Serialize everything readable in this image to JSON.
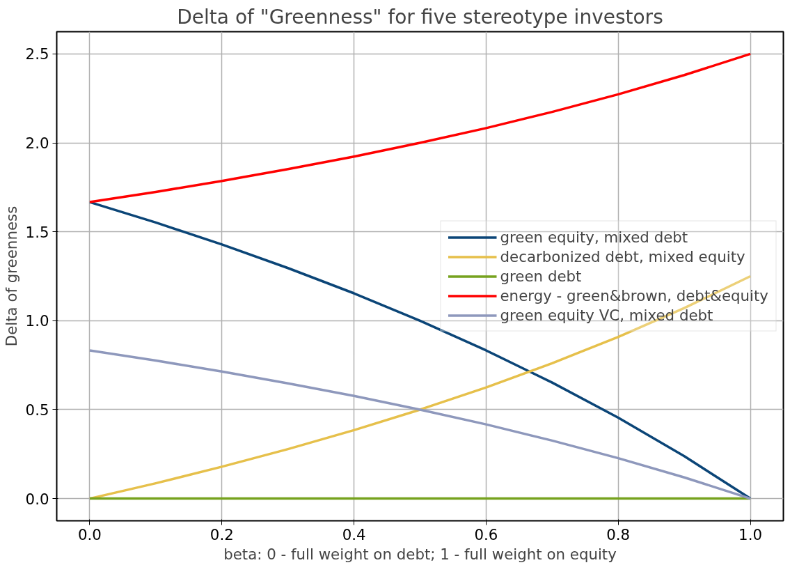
{
  "chart_data": {
    "type": "line",
    "title": "Delta of \"Greenness\" for five stereotype investors",
    "xlabel": "beta: 0 - full weight on debt; 1 - full weight on equity",
    "ylabel": "Delta of greenness",
    "x": [
      0,
      0.1,
      0.2,
      0.3,
      0.4,
      0.5,
      0.6,
      0.7,
      0.8,
      0.9,
      1.0
    ],
    "series": [
      {
        "name": "green equity, mixed debt",
        "color": "#0b4577",
        "values": [
          1.667,
          1.552,
          1.429,
          1.296,
          1.154,
          1.0,
          0.833,
          0.652,
          0.455,
          0.238,
          0
        ]
      },
      {
        "name": "decarbonized debt, mixed equity",
        "color": "#e6c04b",
        "values": [
          0,
          0.086,
          0.179,
          0.278,
          0.385,
          0.5,
          0.625,
          0.761,
          0.909,
          1.071,
          1.25
        ]
      },
      {
        "name": "green debt",
        "color": "#76a21e",
        "values": [
          0,
          0,
          0,
          0,
          0,
          0,
          0,
          0,
          0,
          0,
          0
        ]
      },
      {
        "name": "energy - green&brown, debt&equity",
        "color": "#ff0000",
        "values": [
          1.667,
          1.724,
          1.786,
          1.852,
          1.923,
          2.0,
          2.083,
          2.174,
          2.273,
          2.381,
          2.5
        ]
      },
      {
        "name": "green equity VC, mixed debt",
        "color": "#8e98bc",
        "values": [
          0.833,
          0.776,
          0.714,
          0.648,
          0.577,
          0.5,
          0.417,
          0.326,
          0.227,
          0.119,
          0
        ]
      }
    ],
    "xlim": [
      -0.05,
      1.05
    ],
    "ylim": [
      -0.125,
      2.625
    ],
    "xticks": [
      {
        "value": 0,
        "label": "0.0"
      },
      {
        "value": 0.2,
        "label": "0.2"
      },
      {
        "value": 0.4,
        "label": "0.4"
      },
      {
        "value": 0.6,
        "label": "0.6"
      },
      {
        "value": 0.8,
        "label": "0.8"
      },
      {
        "value": 1.0,
        "label": "1.0"
      }
    ],
    "yticks": [
      {
        "value": 0,
        "label": "0.0"
      },
      {
        "value": 0.5,
        "label": "0.5"
      },
      {
        "value": 1.0,
        "label": "1.0"
      },
      {
        "value": 1.5,
        "label": "1.5"
      },
      {
        "value": 2.0,
        "label": "2.0"
      },
      {
        "value": 2.5,
        "label": "2.5"
      }
    ],
    "grid": true,
    "legend": "right",
    "line_style": "solid",
    "marker": "none"
  }
}
